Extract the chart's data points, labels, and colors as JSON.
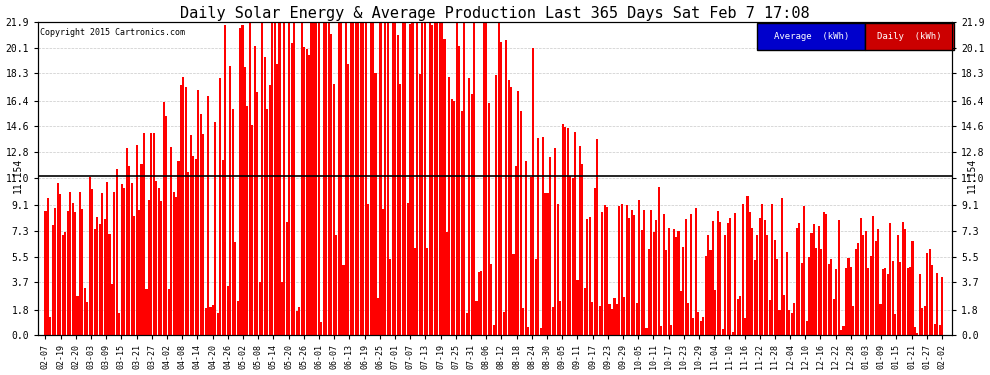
{
  "title": "Daily Solar Energy & Average Production Last 365 Days Sat Feb 7 17:08",
  "copyright": "Copyright 2015 Cartronics.com",
  "average_value": 11.154,
  "bar_color": "#FF0000",
  "average_line_color": "#000000",
  "background_color": "#FFFFFF",
  "plot_bg_color": "#FFFFFF",
  "ylim": [
    0.0,
    21.9
  ],
  "yticks": [
    0.0,
    1.8,
    3.7,
    5.5,
    7.3,
    9.1,
    11.0,
    12.8,
    14.6,
    16.4,
    18.3,
    20.1,
    21.9
  ],
  "legend_avg_color": "#0000CC",
  "legend_daily_color": "#CC0000",
  "legend_text_color": "#FFFFFF",
  "grid_color": "#BBBBBB",
  "title_fontsize": 11,
  "num_bars": 365,
  "xtick_labels": [
    "02-07",
    "02-19",
    "02-20",
    "03-03",
    "03-09",
    "03-15",
    "03-21",
    "03-27",
    "04-02",
    "04-08",
    "04-14",
    "04-20",
    "04-26",
    "05-02",
    "05-08",
    "05-14",
    "05-20",
    "05-26",
    "06-01",
    "06-07",
    "06-13",
    "06-19",
    "06-25",
    "07-01",
    "07-07",
    "07-13",
    "07-19",
    "07-25",
    "07-31",
    "08-06",
    "08-12",
    "08-18",
    "08-24",
    "08-30",
    "09-05",
    "09-11",
    "09-17",
    "09-23",
    "09-29",
    "10-05",
    "10-11",
    "10-17",
    "10-23",
    "10-29",
    "11-04",
    "11-10",
    "11-16",
    "11-22",
    "11-28",
    "12-04",
    "12-10",
    "12-16",
    "12-22",
    "12-28",
    "01-03",
    "01-09",
    "01-15",
    "01-21",
    "01-27",
    "02-02"
  ],
  "seed": 123
}
